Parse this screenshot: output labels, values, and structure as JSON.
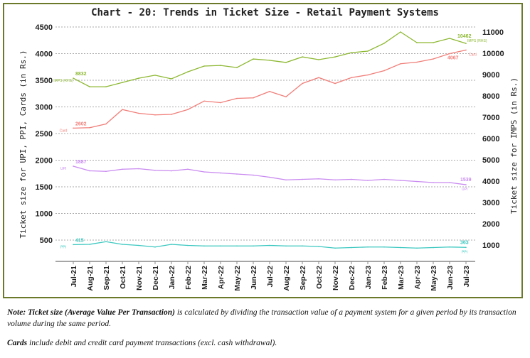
{
  "chart_data": {
    "type": "line",
    "title": "Chart - 20: Trends in Ticket Size - Retail Payment Systems",
    "ylabel_left": "Ticket size for UPI, PPI, Cards (in Rs.)",
    "ylabel_right": "Ticket size for IMPS (in Rs.)",
    "y_left_ticks": [
      500,
      1000,
      1500,
      2000,
      2500,
      3000,
      3500,
      4000,
      4500
    ],
    "y_right_ticks": [
      1000,
      2000,
      3000,
      4000,
      5000,
      6000,
      7000,
      8000,
      9000,
      10000,
      11000
    ],
    "grid": true,
    "categories": [
      "Jul-21",
      "Aug-21",
      "Sep-21",
      "Oct-21",
      "Nov-21",
      "Dec-21",
      "Jan-22",
      "Feb-22",
      "Mar-22",
      "Apr-22",
      "May-22",
      "Jun-22",
      "Jul-22",
      "Aug-22",
      "Sep-22",
      "Oct-22",
      "Nov-22",
      "Dec-22",
      "Jan-23",
      "Feb-23",
      "Mar-23",
      "Apr-23",
      "May-23",
      "Jun-23",
      "Jul-23"
    ],
    "series": [
      {
        "name": "IMPS (RHS)",
        "end_name": "IMPS (RHS)",
        "axis": "right",
        "color": "#8db832",
        "start_label": "8832",
        "end_label": "10462",
        "values": [
          8832,
          8430,
          8430,
          8630,
          8830,
          8970,
          8800,
          9130,
          9400,
          9430,
          9330,
          9730,
          9670,
          9570,
          9830,
          9700,
          9830,
          10030,
          10100,
          10470,
          11000,
          10500,
          10500,
          10700,
          10462
        ]
      },
      {
        "name": "Card",
        "axis": "left",
        "color": "#f07f7a",
        "start_label": "2602",
        "end_label": "4067",
        "values": [
          2602,
          2610,
          2680,
          2950,
          2880,
          2850,
          2860,
          2950,
          3110,
          3080,
          3160,
          3170,
          3290,
          3190,
          3440,
          3550,
          3440,
          3550,
          3600,
          3680,
          3810,
          3840,
          3900,
          4000,
          4067
        ]
      },
      {
        "name": "UPI",
        "axis": "left",
        "color": "#c98af0",
        "start_label": "1887",
        "end_label": "1539",
        "values": [
          1887,
          1800,
          1790,
          1830,
          1840,
          1810,
          1800,
          1830,
          1780,
          1760,
          1740,
          1720,
          1680,
          1630,
          1640,
          1650,
          1630,
          1640,
          1620,
          1640,
          1620,
          1600,
          1580,
          1580,
          1539
        ]
      },
      {
        "name": "PPI",
        "axis": "left",
        "color": "#3cc8c0",
        "start_label": "415",
        "end_label": "363",
        "values": [
          415,
          420,
          470,
          420,
          400,
          370,
          420,
          400,
          390,
          390,
          390,
          390,
          400,
          390,
          390,
          380,
          350,
          360,
          370,
          370,
          360,
          350,
          360,
          370,
          363
        ]
      }
    ]
  },
  "notes": {
    "note1_bold": "Note: Ticket size (Average Value Per Transaction)",
    "note1_rest": " is calculated by dividing the transaction value of a payment system for a given period by its transaction volume during the same period.",
    "note2_bold": "Cards",
    "note2_rest": " include debit and credit card payment transactions (excl. cash withdrawal)."
  }
}
